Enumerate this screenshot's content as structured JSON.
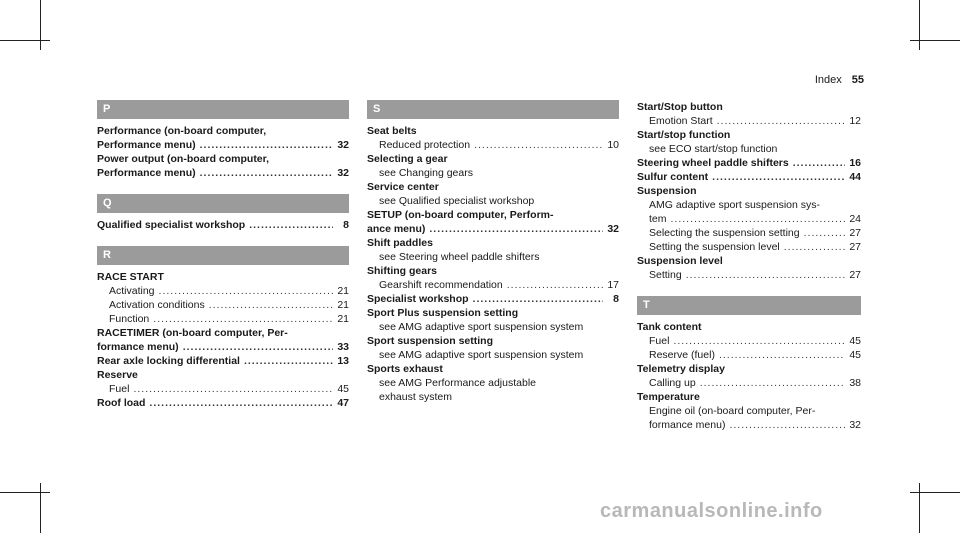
{
  "header": {
    "section": "Index",
    "page": "55"
  },
  "col1": {
    "p_letter": "P",
    "p1_a": "Performance (on-board computer,",
    "p1_b": "Performance menu)",
    "p1_pg": "32",
    "p2_a": "Power output (on-board computer,",
    "p2_b": "Performance menu)",
    "p2_pg": "32",
    "q_letter": "Q",
    "q1": "Qualified specialist workshop",
    "q1_pg": "8",
    "r_letter": "R",
    "r1": "RACE START",
    "r1_s1": "Activating",
    "r1_s1_pg": "21",
    "r1_s2": "Activation conditions",
    "r1_s2_pg": "21",
    "r1_s3": "Function",
    "r1_s3_pg": "21",
    "r2_a": "RACETIMER (on-board computer, Per-",
    "r2_b": "formance menu)",
    "r2_pg": "33",
    "r3": "Rear axle locking differential",
    "r3_pg": "13",
    "r4": "Reserve",
    "r4_s1": "Fuel",
    "r4_s1_pg": "45",
    "r5": "Roof load",
    "r5_pg": "47"
  },
  "col2": {
    "s_letter": "S",
    "s1": "Seat belts",
    "s1_s1": "Reduced protection",
    "s1_s1_pg": "10",
    "s2": "Selecting a gear",
    "s2_s1": "see Changing gears",
    "s3": "Service center",
    "s3_s1": "see Qualified specialist workshop",
    "s4_a": "SETUP (on-board computer, Perform-",
    "s4_b": "ance menu)",
    "s4_pg": "32",
    "s5": "Shift paddles",
    "s5_s1": "see Steering wheel paddle shifters",
    "s6": "Shifting gears",
    "s6_s1": "Gearshift recommendation",
    "s6_s1_pg": "17",
    "s7": "Specialist workshop",
    "s7_pg": "8",
    "s8": "Sport Plus suspension setting",
    "s8_s1": "see AMG adaptive sport suspension system",
    "s9": "Sport suspension setting",
    "s9_s1": "see AMG adaptive sport suspension system",
    "s10": "Sports exhaust",
    "s10_s1": "see AMG Performance adjustable",
    "s10_s2": "exhaust system"
  },
  "col3": {
    "a1": "Start/Stop button",
    "a1_s1": "Emotion Start",
    "a1_s1_pg": "12",
    "a2": "Start/stop function",
    "a2_s1": "see ECO start/stop function",
    "a3": "Steering wheel paddle shifters",
    "a3_pg": "16",
    "a4": "Sulfur content",
    "a4_pg": "44",
    "a5": "Suspension",
    "a5_s1a": "AMG adaptive sport suspension sys-",
    "a5_s1b": "tem",
    "a5_s1_pg": "24",
    "a5_s2": "Selecting the suspension setting",
    "a5_s2_pg": "27",
    "a5_s3": "Setting the suspension level",
    "a5_s3_pg": "27",
    "a6": "Suspension level",
    "a6_s1": "Setting",
    "a6_s1_pg": "27",
    "t_letter": "T",
    "t1": "Tank content",
    "t1_s1": "Fuel",
    "t1_s1_pg": "45",
    "t1_s2": "Reserve (fuel)",
    "t1_s2_pg": "45",
    "t2": "Telemetry display",
    "t2_s1": "Calling up",
    "t2_s1_pg": "38",
    "t3": "Temperature",
    "t3_s1": "Engine oil (on-board computer, Per-",
    "t3_s2": "formance menu)",
    "t3_s2_pg": "32"
  },
  "watermark": "carmanualsonline.info"
}
